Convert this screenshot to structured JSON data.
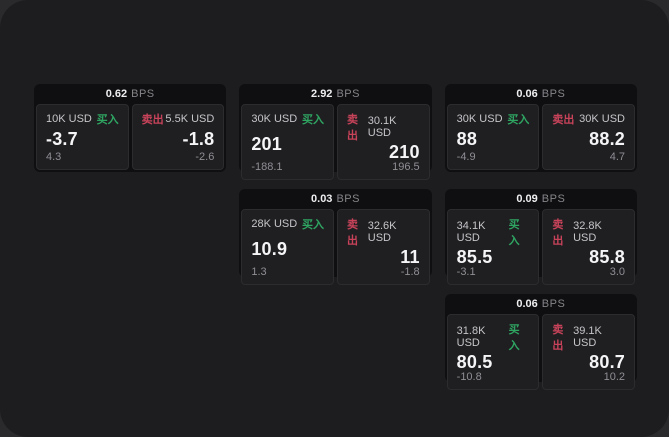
{
  "colors": {
    "buy_green": "#2fa562",
    "sell_red": "#c8435a",
    "window_background": "#1d1d1f",
    "card_background": "#0f0f11",
    "panel_background": "#1f1f22"
  },
  "cards": [
    {
      "spread": "0.62",
      "unit": "BPS",
      "buy": {
        "amount": "10K USD",
        "side": "买入",
        "price": "-3.7",
        "change": "4.3"
      },
      "sell": {
        "side": "卖出",
        "amount": "5.5K USD",
        "price": "-1.8",
        "change": "-2.6"
      }
    },
    {
      "spread": "2.92",
      "unit": "BPS",
      "buy": {
        "amount": "30K USD",
        "side": "买入",
        "price": "201",
        "change": "-188.1"
      },
      "sell": {
        "side": "卖出",
        "amount": "30.1K USD",
        "price": "210",
        "change": "196.5"
      }
    },
    {
      "spread": "0.06",
      "unit": "BPS",
      "buy": {
        "amount": "30K USD",
        "side": "买入",
        "price": "88",
        "change": "-4.9"
      },
      "sell": {
        "side": "卖出",
        "amount": "30K USD",
        "price": "88.2",
        "change": "4.7"
      }
    },
    {
      "spread": "0.03",
      "unit": "BPS",
      "buy": {
        "amount": "28K USD",
        "side": "买入",
        "price": "10.9",
        "change": "1.3"
      },
      "sell": {
        "side": "卖出",
        "amount": "32.6K USD",
        "price": "11",
        "change": "-1.8"
      }
    },
    {
      "spread": "0.09",
      "unit": "BPS",
      "buy": {
        "amount": "34.1K USD",
        "side": "买入",
        "price": "85.5",
        "change": "-3.1"
      },
      "sell": {
        "side": "卖出",
        "amount": "32.8K USD",
        "price": "85.8",
        "change": "3.0"
      }
    },
    {
      "spread": "0.06",
      "unit": "BPS",
      "buy": {
        "amount": "31.8K USD",
        "side": "买入",
        "price": "80.5",
        "change": "-10.8"
      },
      "sell": {
        "side": "卖出",
        "amount": "39.1K USD",
        "price": "80.7",
        "change": "10.2"
      }
    }
  ]
}
